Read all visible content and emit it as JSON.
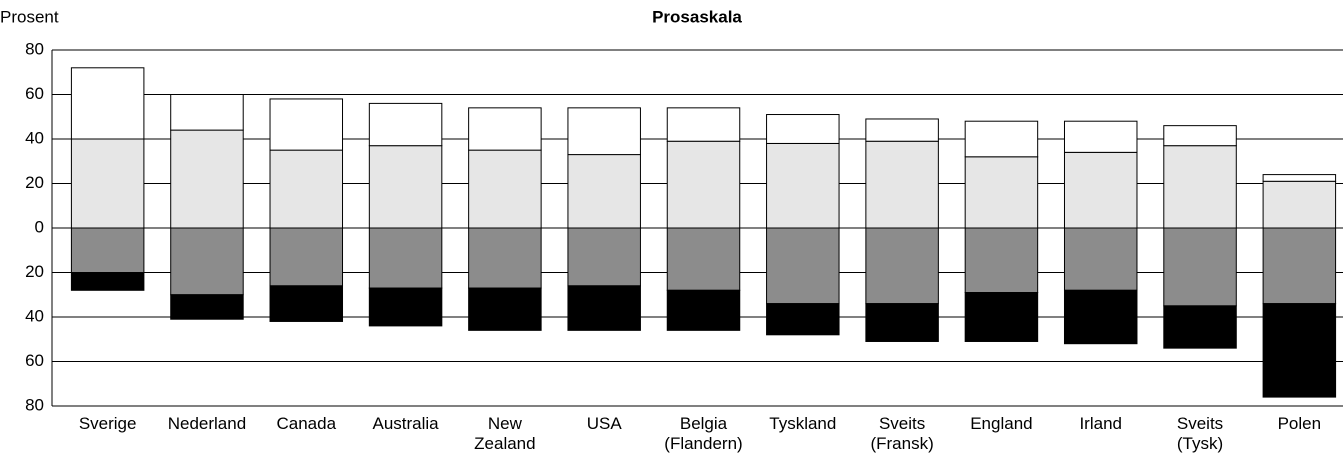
{
  "chart_data": {
    "type": "bar",
    "stacked": "diverging",
    "title": "Prosaskala",
    "y_label": "Prosent",
    "categories": [
      "Sverige",
      "Nederland",
      "Canada",
      "Australia",
      "New Zealand",
      "USA",
      "Belgia (Flandern)",
      "Tyskland",
      "Sveits (Fransk)",
      "England",
      "Irland",
      "Sveits (Tysk)",
      "Polen"
    ],
    "series": [
      {
        "color": "#e6e6e6",
        "values": [
          40,
          44,
          35,
          37,
          35,
          33,
          39,
          38,
          39,
          32,
          34,
          37,
          21
        ]
      },
      {
        "color": "#ffffff",
        "values": [
          32,
          16,
          23,
          19,
          19,
          21,
          15,
          13,
          10,
          16,
          14,
          9,
          3
        ]
      },
      {
        "color": "#8c8c8c",
        "values": [
          -20,
          -30,
          -26,
          -27,
          -27,
          -26,
          -28,
          -34,
          -34,
          -29,
          -28,
          -35,
          -34
        ]
      },
      {
        "color": "#000000",
        "values": [
          -8,
          -11,
          -16,
          -17,
          -19,
          -20,
          -18,
          -14,
          -17,
          -22,
          -24,
          -19,
          -42
        ]
      }
    ],
    "ylim": [
      -80,
      80
    ],
    "yticks": [
      {
        "value": -80,
        "label": "80"
      },
      {
        "value": -60,
        "label": "60"
      },
      {
        "value": -40,
        "label": "40"
      },
      {
        "value": -20,
        "label": "20"
      },
      0,
      20,
      40,
      60,
      80
    ],
    "grid": true
  }
}
